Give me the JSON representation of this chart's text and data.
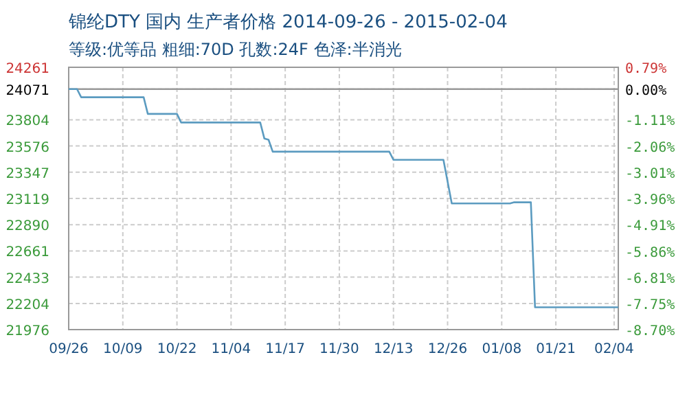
{
  "chart_data": {
    "type": "step",
    "title": "锦纶DTY 国内 生产者价格 2014-09-26 - 2015-02-04",
    "subtitle": "等级:优等品 粗细:70D 孔数:24F 色泽:半消光",
    "x": [
      "2014-09-26",
      "2014-09-28",
      "2014-09-29",
      "2014-10-14",
      "2014-10-15",
      "2014-10-22",
      "2014-10-23",
      "2014-11-11",
      "2014-11-12",
      "2014-11-13",
      "2014-11-14",
      "2014-12-12",
      "2014-12-13",
      "2014-12-25",
      "2014-12-27",
      "2015-01-10",
      "2015-01-11",
      "2015-01-15",
      "2015-01-16",
      "2015-02-05"
    ],
    "series": [
      {
        "color": "#5b9bc0",
        "values": [
          24071,
          24071,
          24000,
          24000,
          23855,
          23855,
          23780,
          23780,
          23640,
          23630,
          23526,
          23526,
          23455,
          23455,
          23075,
          23075,
          23085,
          23085,
          22170,
          22170
        ]
      }
    ],
    "xlim": [
      "2014-09-26",
      "2015-02-05"
    ],
    "xticks": [
      {
        "value": "2014-09-26",
        "label": "09/26"
      },
      {
        "value": "2014-10-09",
        "label": "10/09"
      },
      {
        "value": "2014-10-22",
        "label": "10/22"
      },
      {
        "value": "2014-11-04",
        "label": "11/04"
      },
      {
        "value": "2014-11-17",
        "label": "11/17"
      },
      {
        "value": "2014-11-30",
        "label": "11/30"
      },
      {
        "value": "2014-12-13",
        "label": "12/13"
      },
      {
        "value": "2014-12-26",
        "label": "12/26"
      },
      {
        "value": "2015-01-08",
        "label": "01/08"
      },
      {
        "value": "2015-01-21",
        "label": "01/21"
      },
      {
        "value": "2015-02-04",
        "label": "02/04"
      }
    ],
    "ylim": [
      21976,
      24261
    ],
    "yticks": [
      24261,
      24071,
      23804,
      23576,
      23347,
      23119,
      22890,
      22661,
      22433,
      22204,
      21976
    ],
    "y2lim": [
      -8.7,
      0.79
    ],
    "y2ticks": [
      {
        "value": 0.79,
        "label": "0.79%"
      },
      {
        "value": 0,
        "label": "0.00%"
      },
      {
        "value": -1.11,
        "label": "-1.11%"
      },
      {
        "value": -2.06,
        "label": "-2.06%"
      },
      {
        "value": -3.01,
        "label": "-3.01%"
      },
      {
        "value": -3.96,
        "label": "-3.96%"
      },
      {
        "value": -4.91,
        "label": "-4.91%"
      },
      {
        "value": -5.86,
        "label": "-5.86%"
      },
      {
        "value": -6.81,
        "label": "-6.81%"
      },
      {
        "value": -7.75,
        "label": "-7.75%"
      },
      {
        "value": -8.7,
        "label": "-8.70%"
      }
    ],
    "ref_lines": [
      {
        "axis": "y",
        "value": 24071,
        "color": "#999999"
      }
    ],
    "grid": true,
    "marker": "none",
    "line_style": "solid"
  }
}
